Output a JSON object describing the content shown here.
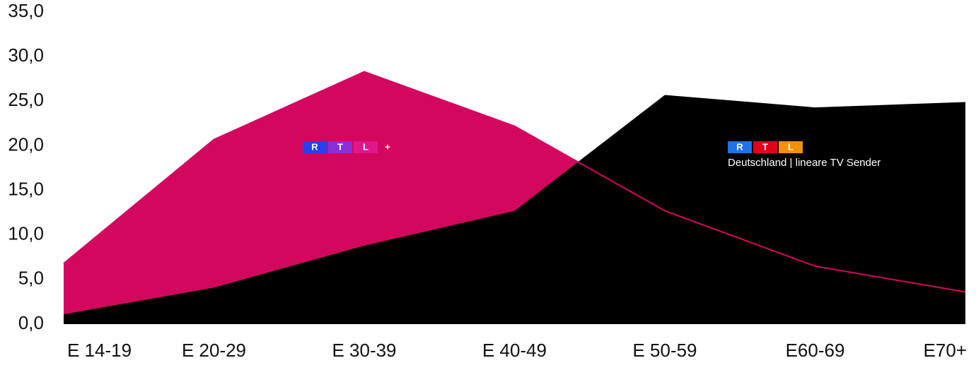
{
  "chart_data": {
    "type": "area",
    "categories": [
      "E 14-19",
      "E 20-29",
      "E 30-39",
      "E 40-49",
      "E 50-59",
      "E60-69",
      "E70+"
    ],
    "ylim": [
      0,
      35
    ],
    "yticks": [
      {
        "value": 0,
        "label": "0,0"
      },
      {
        "value": 5,
        "label": "5,0"
      },
      {
        "value": 10,
        "label": "10,0"
      },
      {
        "value": 15,
        "label": "15,0"
      },
      {
        "value": 20,
        "label": "20,0"
      },
      {
        "value": 25,
        "label": "25,0"
      },
      {
        "value": 30,
        "label": "30,0"
      },
      {
        "value": 35,
        "label": "35,0"
      }
    ],
    "series": [
      {
        "logo": [
          "R",
          "T",
          "L",
          "+"
        ],
        "logo_colors": [
          "#2a3ff0",
          "#8b2fd6",
          "#e0168a",
          null
        ],
        "color": "#d4075f",
        "values": [
          6.8,
          20.7,
          28.3,
          22.2,
          12.7,
          6.5,
          3.6
        ]
      },
      {
        "logo": [
          "R",
          "T",
          "L"
        ],
        "logo_colors": [
          "#1f72e8",
          "#e0001a",
          "#f39200"
        ],
        "label": "Deutschland | lineare TV Sender",
        "color": "#000000",
        "values": [
          1.1,
          4.1,
          8.8,
          12.7,
          25.7,
          24.3,
          24.9
        ]
      }
    ]
  }
}
